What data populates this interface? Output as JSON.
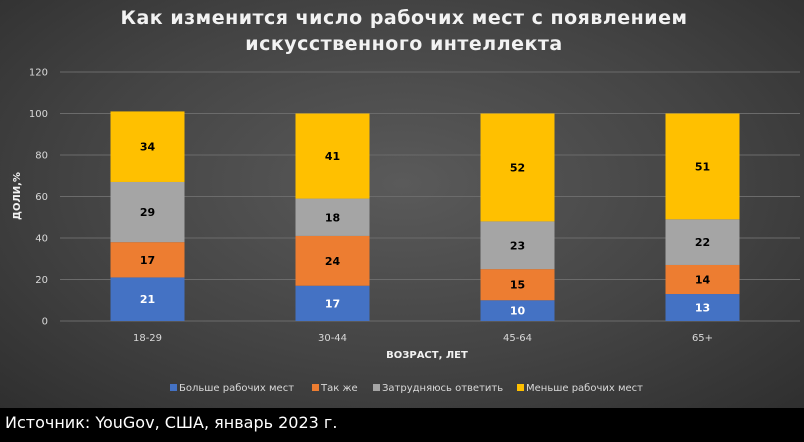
{
  "chart_data": {
    "type": "bar",
    "stacked": true,
    "title_lines": [
      "Как изменится  число рабочих  мест с появлением",
      "искусственного  интеллекта"
    ],
    "xlabel": "ВОЗРАСТ, ЛЕТ",
    "ylabel": "ДОЛИ,%",
    "ylim": [
      0,
      120
    ],
    "yticks": [
      0,
      20,
      40,
      60,
      80,
      100,
      120
    ],
    "categories": [
      "18-29",
      "30-44",
      "45-64",
      "65+"
    ],
    "series": [
      {
        "name": "Больше рабочих мест",
        "color": "#4472C4",
        "label_color": "#ffffff",
        "values": [
          21,
          17,
          10,
          13
        ]
      },
      {
        "name": "Так же",
        "color": "#ED7D31",
        "label_color": "#000000",
        "values": [
          17,
          24,
          15,
          14
        ]
      },
      {
        "name": "Затрудняюсь ответить",
        "color": "#A5A5A5",
        "label_color": "#000000",
        "values": [
          29,
          18,
          23,
          22
        ]
      },
      {
        "name": "Меньше рабочих мест",
        "color": "#FFC000",
        "label_color": "#000000",
        "values": [
          34,
          41,
          52,
          51
        ]
      }
    ],
    "grid": true,
    "legend_position": "bottom"
  },
  "source": "Источник: YouGov, США, январь 2023 г."
}
